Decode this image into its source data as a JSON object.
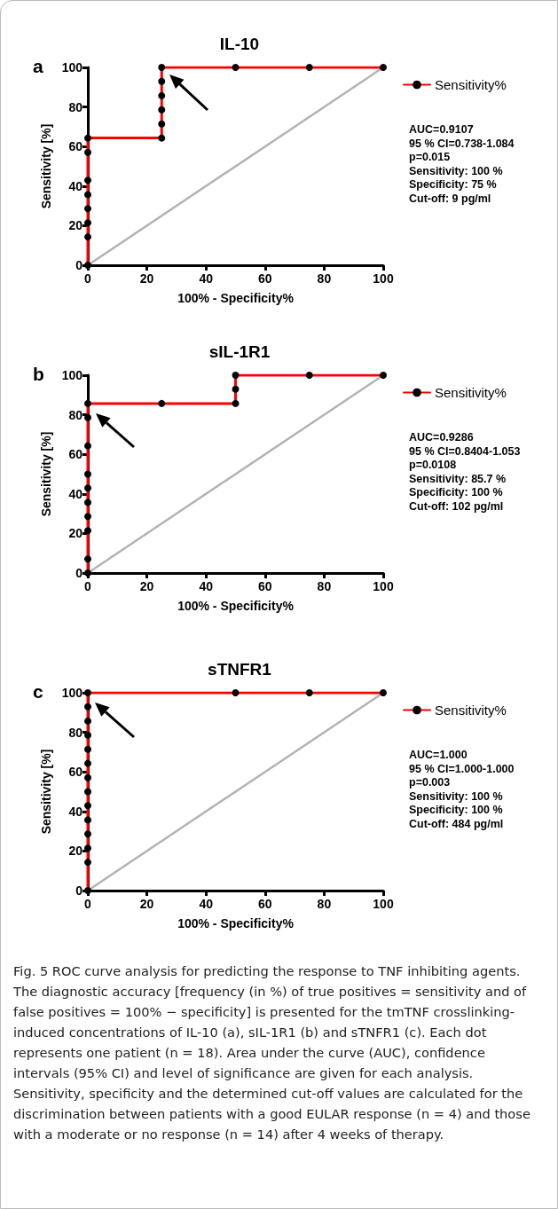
{
  "chart_data": [
    {
      "type": "line",
      "title": "IL-10",
      "xlabel": "100% - Specificity%",
      "ylabel": "Sensitivity [%]",
      "xlim": [
        0,
        100
      ],
      "ylim": [
        0,
        100
      ],
      "xticks": [
        0,
        20,
        40,
        60,
        80,
        100
      ],
      "yticks": [
        0,
        20,
        40,
        60,
        80,
        100
      ],
      "grid": false,
      "legend": "top right",
      "marker": "circle",
      "line_style": "solid",
      "annotations": [
        "a",
        "AUC=0.9107",
        "95 % CI=0.738-1.084",
        "p=0.015",
        "Sensitivity: 100 %",
        "Specificity: 75 %",
        "Cut-off: 9 pg/ml"
      ],
      "series": [
        {
          "name": "Sensitivity%",
          "color": "#ff0000",
          "x": [
            0,
            0,
            0,
            0,
            0,
            0,
            0,
            0,
            25,
            25,
            25,
            25,
            25,
            25,
            50,
            75,
            100
          ],
          "values": [
            0,
            14.3,
            21.4,
            28.6,
            35.7,
            42.9,
            57.1,
            64.3,
            64.3,
            71.4,
            78.6,
            85.7,
            92.9,
            100,
            100,
            100,
            100
          ]
        },
        {
          "type": "line",
          "color": "#b3b3b3",
          "marker": "none",
          "x": [
            0,
            100
          ],
          "values": [
            0,
            100
          ]
        }
      ]
    },
    {
      "type": "line",
      "title": "sIL-1R1",
      "xlabel": "100% - Specificity%",
      "ylabel": "Sensitivity [%]",
      "xlim": [
        0,
        100
      ],
      "ylim": [
        0,
        100
      ],
      "xticks": [
        0,
        20,
        40,
        60,
        80,
        100
      ],
      "yticks": [
        0,
        20,
        40,
        60,
        80,
        100
      ],
      "grid": false,
      "legend": "top right",
      "marker": "circle",
      "line_style": "solid",
      "annotations": [
        "b",
        "AUC=0.9286",
        "95 % CI=0.8404-1.053",
        "p=0.0108",
        "Sensitivity: 85.7 %",
        "Specificity: 100 %",
        "Cut-off: 102 pg/ml"
      ],
      "series": [
        {
          "name": "Sensitivity%",
          "color": "#ff0000",
          "x": [
            0,
            0,
            0,
            0,
            0,
            0,
            0,
            0,
            0,
            0,
            25,
            50,
            50,
            50,
            75,
            100
          ],
          "values": [
            0,
            7.1,
            21.4,
            28.6,
            35.7,
            42.9,
            50,
            64.3,
            78.6,
            85.7,
            85.7,
            85.7,
            92.9,
            100,
            100,
            100
          ]
        },
        {
          "type": "line",
          "color": "#b3b3b3",
          "marker": "none",
          "x": [
            0,
            100
          ],
          "values": [
            0,
            100
          ]
        }
      ]
    },
    {
      "type": "line",
      "title": "sTNFR1",
      "xlabel": "100% - Specificity%",
      "ylabel": "Sensitivity [%]",
      "xlim": [
        0,
        100
      ],
      "ylim": [
        0,
        100
      ],
      "xticks": [
        0,
        20,
        40,
        60,
        80,
        100
      ],
      "yticks": [
        0,
        20,
        40,
        60,
        80,
        100
      ],
      "grid": false,
      "legend": "top right",
      "marker": "circle",
      "line_style": "solid",
      "annotations": [
        "c",
        "AUC=1.000",
        "95 % CI=1.000-1.000",
        "p=0.003",
        "Sensitivity: 100 %",
        "Specificity: 100 %",
        "Cut-off: 484 pg/ml"
      ],
      "series": [
        {
          "name": "Sensitivity%",
          "color": "#ff0000",
          "x": [
            0,
            0,
            0,
            0,
            0,
            0,
            0,
            0,
            0,
            0,
            0,
            0,
            0,
            0,
            50,
            75,
            100
          ],
          "values": [
            0,
            14.3,
            21.4,
            28.6,
            35.7,
            42.9,
            50,
            57.1,
            64.3,
            71.4,
            78.6,
            85.7,
            92.9,
            100,
            100,
            100,
            100
          ]
        },
        {
          "type": "line",
          "color": "#b3b3b3",
          "marker": "none",
          "x": [
            0,
            100
          ],
          "values": [
            0,
            100
          ]
        }
      ]
    },
    {
      "type": "other",
      "annotations": [
        "Fig. 5 ROC curve analysis for predicting the response to TNF inhibiting agents. The diagnostic accuracy [frequency (in %) of true positives = sensitivity and of false positives = 100% − specificity] is presented for the tmTNF crosslinking-induced concentrations of IL-10 (a), sIL-1R1 (b) and sTNFR1 (c). Each dot represents one patient (n = 18). Area under the curve (AUC), confidence intervals (95% CI) and level of significance are given for each analysis. Sensitivity, specificity and the determined cut-off values are calculated for the discrimination between patients with a good EULAR response (n = 4) and those with a moderate or no response (n = 14) after 4 weeks of therapy."
      ]
    }
  ]
}
